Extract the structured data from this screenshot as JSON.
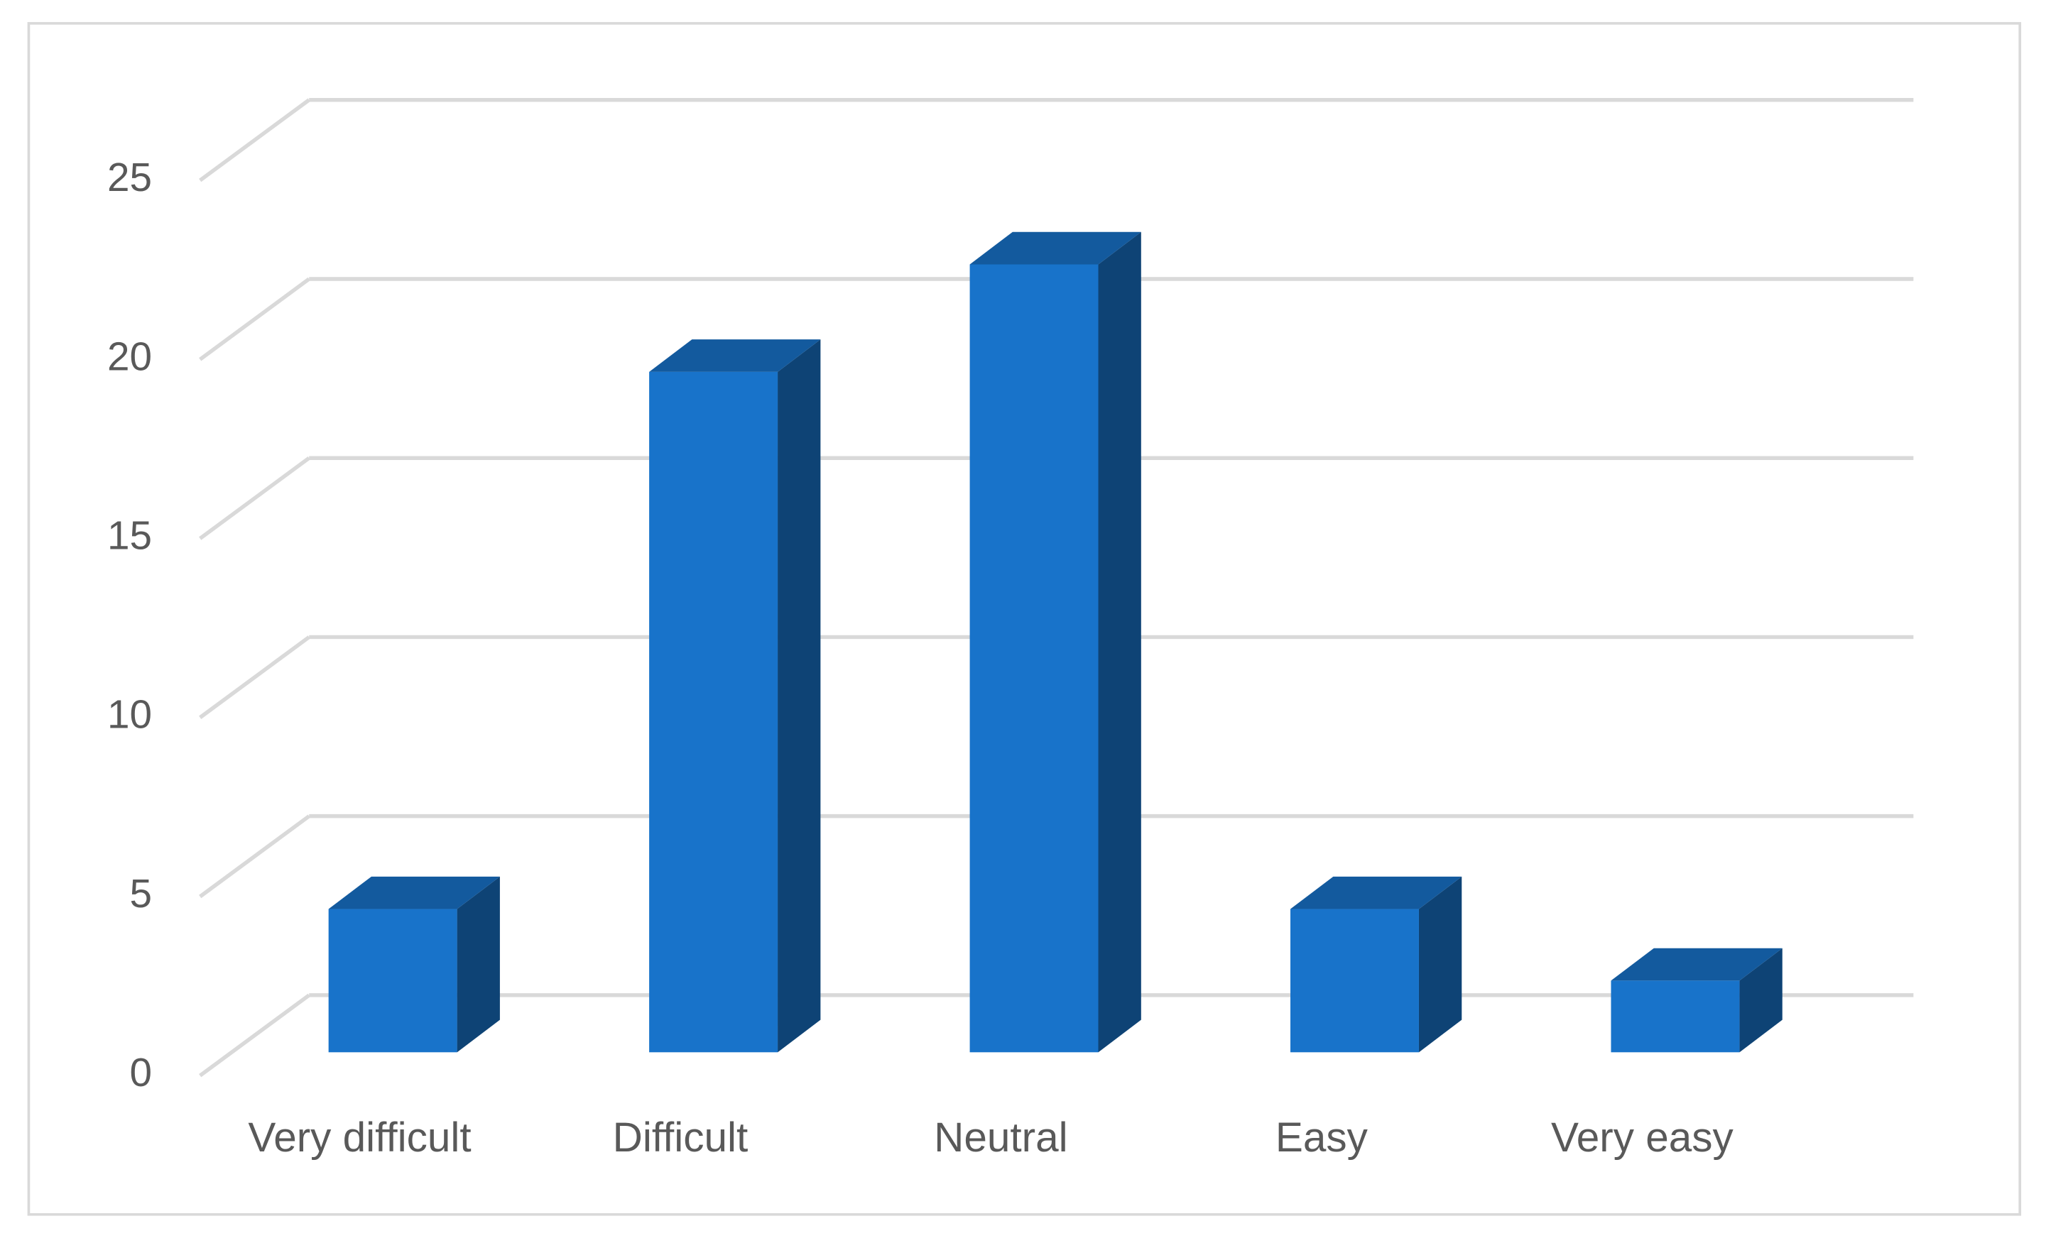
{
  "chart_data": {
    "type": "bar",
    "categories": [
      "Very difficult",
      "Difficult",
      "Neutral",
      "Easy",
      "Very easy"
    ],
    "values": [
      4,
      19,
      22,
      4,
      2
    ],
    "color": "#1873ca",
    "ylim": [
      0,
      25
    ],
    "yticks": [
      0,
      5,
      10,
      15,
      20,
      25
    ],
    "grid": true
  }
}
